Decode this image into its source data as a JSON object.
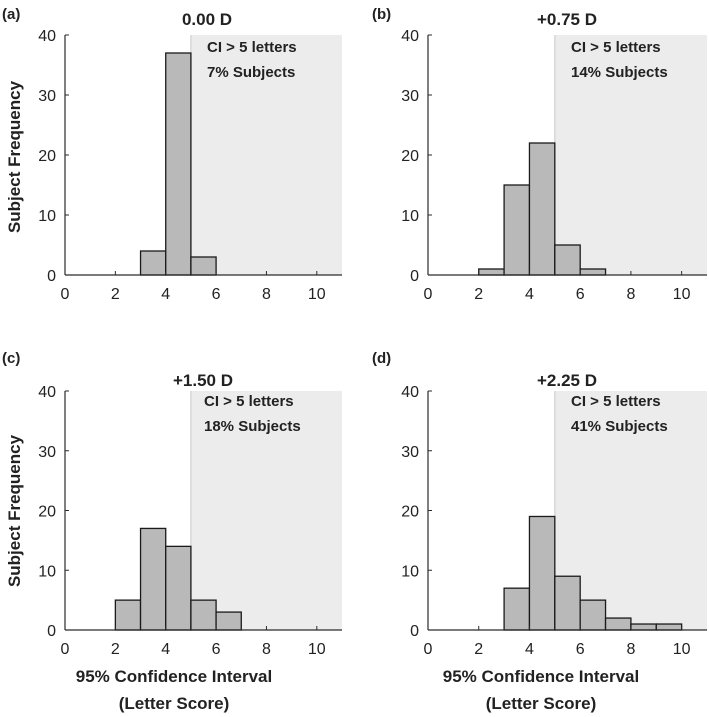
{
  "figure": {
    "ylabel": "Subject Frequency",
    "xlabel_line1": "95% Confidence Interval",
    "xlabel_line2": "(Letter Score)"
  },
  "colors": {
    "bar_fill": "#b9b9b9",
    "bar_stroke": "#1a1a1a",
    "shade": "#ececec",
    "axis": "#2b2b2b"
  },
  "chart_data": [
    {
      "type": "bar",
      "panel_label": "(a)",
      "title": "0.00 D",
      "annotation_line1": "CI > 5 letters",
      "annotation_line2": "7% Subjects",
      "bins": [
        [
          3,
          4
        ],
        [
          4,
          5
        ],
        [
          5,
          6
        ]
      ],
      "values": [
        4,
        37,
        3
      ],
      "xlim": [
        0,
        11
      ],
      "ylim": [
        0,
        40
      ],
      "xticks": [
        0,
        2,
        4,
        6,
        8,
        10
      ],
      "yticks": [
        0,
        10,
        20,
        30,
        40
      ],
      "shade_from_x": 5,
      "xlabel": "",
      "ylabel": "Subject Frequency"
    },
    {
      "type": "bar",
      "panel_label": "(b)",
      "title": "+0.75 D",
      "annotation_line1": "CI > 5 letters",
      "annotation_line2": "14% Subjects",
      "bins": [
        [
          2,
          3
        ],
        [
          3,
          4
        ],
        [
          4,
          5
        ],
        [
          5,
          6
        ],
        [
          6,
          7
        ]
      ],
      "values": [
        1,
        15,
        22,
        5,
        1
      ],
      "xlim": [
        0,
        11
      ],
      "ylim": [
        0,
        40
      ],
      "xticks": [
        0,
        2,
        4,
        6,
        8,
        10
      ],
      "yticks": [
        0,
        10,
        20,
        30,
        40
      ],
      "shade_from_x": 5,
      "xlabel": "",
      "ylabel": ""
    },
    {
      "type": "bar",
      "panel_label": "(c)",
      "title": "+1.50 D",
      "annotation_line1": "CI > 5 letters",
      "annotation_line2": "18% Subjects",
      "bins": [
        [
          2,
          3
        ],
        [
          3,
          4
        ],
        [
          4,
          5
        ],
        [
          5,
          6
        ],
        [
          6,
          7
        ]
      ],
      "values": [
        5,
        17,
        14,
        5,
        3
      ],
      "xlim": [
        0,
        11
      ],
      "ylim": [
        0,
        40
      ],
      "xticks": [
        0,
        2,
        4,
        6,
        8,
        10
      ],
      "yticks": [
        0,
        10,
        20,
        30,
        40
      ],
      "shade_from_x": 5,
      "xlabel": "95% Confidence Interval (Letter Score)",
      "ylabel": "Subject Frequency"
    },
    {
      "type": "bar",
      "panel_label": "(d)",
      "title": "+2.25 D",
      "annotation_line1": "CI > 5 letters",
      "annotation_line2": "41% Subjects",
      "bins": [
        [
          3,
          4
        ],
        [
          4,
          5
        ],
        [
          5,
          6
        ],
        [
          6,
          7
        ],
        [
          7,
          8
        ],
        [
          8,
          9
        ],
        [
          9,
          10
        ]
      ],
      "values": [
        7,
        19,
        9,
        5,
        2,
        1,
        1
      ],
      "xlim": [
        0,
        11
      ],
      "ylim": [
        0,
        40
      ],
      "xticks": [
        0,
        2,
        4,
        6,
        8,
        10
      ],
      "yticks": [
        0,
        10,
        20,
        30,
        40
      ],
      "shade_from_x": 5,
      "xlabel": "95% Confidence Interval (Letter Score)",
      "ylabel": ""
    }
  ]
}
